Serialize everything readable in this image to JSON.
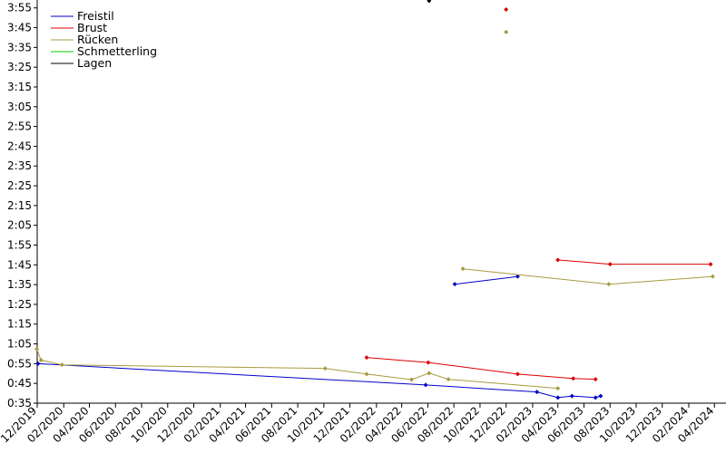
{
  "chart_data": {
    "type": "line",
    "title": "",
    "xlabel": "",
    "ylabel": "",
    "y_unit": "min:sec",
    "ylim": [
      "0:35",
      "3:59"
    ],
    "xlim": [
      "2019-12-01",
      "2024-04-28"
    ],
    "y_ticks": [
      "0:35",
      "0:45",
      "0:55",
      "1:05",
      "1:15",
      "1:25",
      "1:35",
      "1:45",
      "1:55",
      "2:05",
      "2:15",
      "2:25",
      "2:35",
      "2:45",
      "2:55",
      "3:05",
      "3:15",
      "3:25",
      "3:35",
      "3:45",
      "3:55"
    ],
    "x_ticks": [
      {
        "label": "12/2019",
        "date": "2019-12-01"
      },
      {
        "label": "02/2020",
        "date": "2020-02-01"
      },
      {
        "label": "04/2020",
        "date": "2020-04-01"
      },
      {
        "label": "06/2020",
        "date": "2020-06-01"
      },
      {
        "label": "08/2020",
        "date": "2020-08-01"
      },
      {
        "label": "10/2020",
        "date": "2020-10-01"
      },
      {
        "label": "12/2020",
        "date": "2020-12-01"
      },
      {
        "label": "02/2021",
        "date": "2021-02-01"
      },
      {
        "label": "04/2021",
        "date": "2021-04-01"
      },
      {
        "label": "06/2021",
        "date": "2021-06-01"
      },
      {
        "label": "08/2021",
        "date": "2021-08-01"
      },
      {
        "label": "10/2021",
        "date": "2021-10-01"
      },
      {
        "label": "12/2021",
        "date": "2021-12-01"
      },
      {
        "label": "02/2022",
        "date": "2022-02-01"
      },
      {
        "label": "04/2022",
        "date": "2022-04-01"
      },
      {
        "label": "06/2022",
        "date": "2022-06-01"
      },
      {
        "label": "08/2022",
        "date": "2022-08-01"
      },
      {
        "label": "10/2022",
        "date": "2022-10-01"
      },
      {
        "label": "12/2022",
        "date": "2022-12-01"
      },
      {
        "label": "02/2023",
        "date": "2023-02-01"
      },
      {
        "label": "04/2023",
        "date": "2023-04-01"
      },
      {
        "label": "06/2023",
        "date": "2023-06-01"
      },
      {
        "label": "08/2023",
        "date": "2023-08-01"
      },
      {
        "label": "10/2023",
        "date": "2023-10-01"
      },
      {
        "label": "12/2023",
        "date": "2023-12-01"
      },
      {
        "label": "02/2024",
        "date": "2024-02-01"
      },
      {
        "label": "04/2024",
        "date": "2024-04-01"
      }
    ],
    "grid": false,
    "legend_position": "top-left",
    "series": [
      {
        "name": "Freistil",
        "color": "#0000cc",
        "segments": [
          [
            [
              "2019-12-03",
              "0:55.0"
            ],
            [
              "2022-05-27",
              "0:44.2"
            ],
            [
              "2023-02-11",
              "0:40.7"
            ],
            [
              "2023-04-01",
              "0:37.8"
            ],
            [
              "2023-05-04",
              "0:38.6"
            ],
            [
              "2023-06-28",
              "0:37.8"
            ],
            [
              "2023-07-10",
              "0:38.6"
            ]
          ],
          [
            [
              "2022-08-03",
              "1:35.2"
            ],
            [
              "2022-12-28",
              "1:39.1"
            ]
          ]
        ]
      },
      {
        "name": "Brust",
        "color": "#dd0000",
        "segments": [
          [
            [
              "2022-01-09",
              "0:58.1"
            ],
            [
              "2022-06-02",
              "0:55.6"
            ],
            [
              "2022-12-28",
              "0:49.7"
            ],
            [
              "2023-05-07",
              "0:47.5"
            ],
            [
              "2023-06-28",
              "0:47.1"
            ]
          ],
          [
            [
              "2023-04-01",
              "1:47.5"
            ],
            [
              "2023-08-01",
              "1:45.3"
            ],
            [
              "2024-03-23",
              "1:45.3"
            ]
          ]
        ],
        "points": [
          [
            "2022-12-01",
            "3:54.2"
          ]
        ]
      },
      {
        "name": "Rücken",
        "color": "#a89a40",
        "segments": [
          [
            [
              "2019-11-30",
              "1:02.4"
            ],
            [
              "2019-12-10",
              "0:56.8"
            ],
            [
              "2020-01-28",
              "0:54.4"
            ],
            [
              "2021-10-04",
              "0:52.6"
            ],
            [
              "2022-01-09",
              "0:49.7"
            ],
            [
              "2022-04-24",
              "0:46.9"
            ],
            [
              "2022-06-04",
              "0:50.2"
            ],
            [
              "2022-07-19",
              "0:47.1"
            ],
            [
              "2023-04-01",
              "0:42.5"
            ]
          ],
          [
            [
              "2022-08-22",
              "1:43.0"
            ],
            [
              "2023-07-29",
              "1:35.2"
            ],
            [
              "2024-03-28",
              "1:39.1"
            ]
          ]
        ],
        "points": [
          [
            "2022-12-01",
            "3:42.8"
          ]
        ]
      },
      {
        "name": "Schmetterling",
        "color": "#00cc00",
        "segments": [],
        "points": []
      },
      {
        "name": "Lagen",
        "color": "#000000",
        "segments": [],
        "points": [
          [
            "2022-06-04",
            "3:58.6"
          ]
        ]
      }
    ]
  }
}
